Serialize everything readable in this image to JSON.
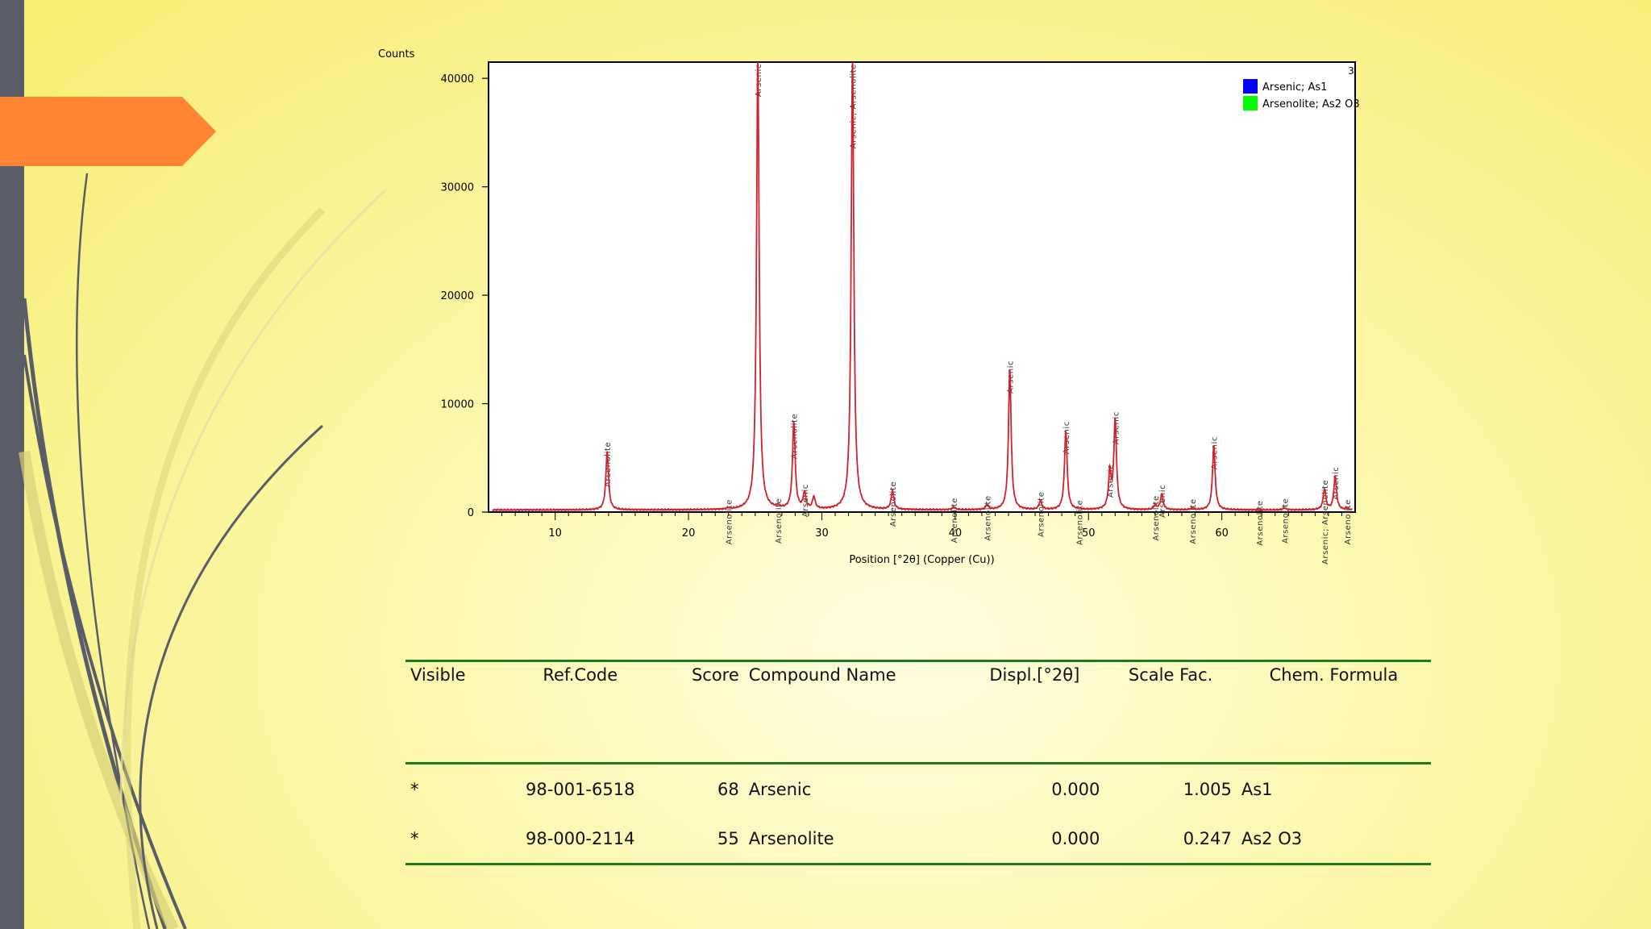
{
  "colors": {
    "trace": "#d0222a",
    "axis": "#000000",
    "series_arsenic": "#0000ff",
    "series_arsenolite": "#00ff00",
    "table_rule": "#1f7a1f"
  },
  "chart_data": {
    "type": "line",
    "ylabel": "Counts",
    "xlabel": "Position [°2θ] (Copper (Cu))",
    "corner_label": "3",
    "xlim": [
      5,
      70
    ],
    "ylim": [
      0,
      41500
    ],
    "x_ticks": [
      10,
      20,
      30,
      40,
      50,
      60
    ],
    "y_ticks": [
      0,
      10000,
      20000,
      30000,
      40000
    ],
    "legend": {
      "position": "top-right",
      "entries": [
        {
          "label": "Arsenic; As1",
          "color": "#0000ff"
        },
        {
          "label": "Arsenolite; As2 O3",
          "color": "#00ff00"
        }
      ]
    },
    "baseline": 200,
    "peaks": [
      {
        "x": 13.9,
        "y": 5600
      },
      {
        "x": 23.0,
        "y": 300
      },
      {
        "x": 25.2,
        "y": 41500
      },
      {
        "x": 26.7,
        "y": 400
      },
      {
        "x": 27.9,
        "y": 8200
      },
      {
        "x": 28.7,
        "y": 1700
      },
      {
        "x": 29.4,
        "y": 1300
      },
      {
        "x": 32.3,
        "y": 41500
      },
      {
        "x": 35.3,
        "y": 1950
      },
      {
        "x": 39.9,
        "y": 450
      },
      {
        "x": 42.4,
        "y": 650
      },
      {
        "x": 44.1,
        "y": 13100
      },
      {
        "x": 46.4,
        "y": 1000
      },
      {
        "x": 48.3,
        "y": 7500
      },
      {
        "x": 49.3,
        "y": 250
      },
      {
        "x": 51.6,
        "y": 3500
      },
      {
        "x": 52.0,
        "y": 8400
      },
      {
        "x": 55.0,
        "y": 650
      },
      {
        "x": 55.5,
        "y": 1650
      },
      {
        "x": 57.8,
        "y": 350
      },
      {
        "x": 59.4,
        "y": 6100
      },
      {
        "x": 62.8,
        "y": 200
      },
      {
        "x": 64.7,
        "y": 400
      },
      {
        "x": 67.7,
        "y": 2100
      },
      {
        "x": 68.5,
        "y": 3300
      },
      {
        "x": 69.4,
        "y": 300
      }
    ],
    "annotations": [
      {
        "x": 13.9,
        "y": 5600,
        "label": "Arsenolite"
      },
      {
        "x": 23.0,
        "y": 300,
        "label": "Arsenolite"
      },
      {
        "x": 25.2,
        "y": 41500,
        "label": "Arsenic"
      },
      {
        "x": 26.7,
        "y": 400,
        "label": "Arsenolite"
      },
      {
        "x": 27.9,
        "y": 8200,
        "label": "Arsenolite"
      },
      {
        "x": 28.7,
        "y": 1700,
        "label": "Arsenic"
      },
      {
        "x": 32.3,
        "y": 41500,
        "label": "Arsenic; Arsenolite"
      },
      {
        "x": 35.3,
        "y": 1950,
        "label": "Arsenolite"
      },
      {
        "x": 39.9,
        "y": 450,
        "label": "Arsenolite"
      },
      {
        "x": 42.4,
        "y": 650,
        "label": "Arsenolite"
      },
      {
        "x": 44.1,
        "y": 13100,
        "label": "Arsenic"
      },
      {
        "x": 46.4,
        "y": 1000,
        "label": "Arsenolite"
      },
      {
        "x": 48.3,
        "y": 7500,
        "label": "Arsenic"
      },
      {
        "x": 49.3,
        "y": 250,
        "label": "Arsenolite"
      },
      {
        "x": 51.6,
        "y": 3500,
        "label": "Arsenic"
      },
      {
        "x": 52.0,
        "y": 8400,
        "label": "Arsenic"
      },
      {
        "x": 55.0,
        "y": 650,
        "label": "Arsenolite"
      },
      {
        "x": 55.5,
        "y": 1650,
        "label": "Arsenic"
      },
      {
        "x": 57.8,
        "y": 350,
        "label": "Arsenolite"
      },
      {
        "x": 59.4,
        "y": 6100,
        "label": "Arsenic"
      },
      {
        "x": 62.8,
        "y": 200,
        "label": "Arsenolite"
      },
      {
        "x": 64.7,
        "y": 400,
        "label": "Arsenolite"
      },
      {
        "x": 67.7,
        "y": 2100,
        "label": "Arsenic; Arsenolite"
      },
      {
        "x": 68.5,
        "y": 3300,
        "label": "Arsenic"
      },
      {
        "x": 69.4,
        "y": 300,
        "label": "Arsenolite"
      }
    ]
  },
  "table": {
    "headers": {
      "visible": "Visible",
      "ref_code": "Ref.Code",
      "score": "Score",
      "compound": "Compound Name",
      "displ": "Displ.[°2θ]",
      "scale": "Scale Fac.",
      "formula": "Chem. Formula"
    },
    "rows": [
      {
        "visible": "*",
        "ref_code": "98-001-6518",
        "score": "68",
        "compound": "Arsenic",
        "displ": "0.000",
        "scale": "1.005",
        "formula": "As1"
      },
      {
        "visible": "*",
        "ref_code": "98-000-2114",
        "score": "55",
        "compound": "Arsenolite",
        "displ": "0.000",
        "scale": "0.247",
        "formula": "As2 O3"
      }
    ]
  }
}
